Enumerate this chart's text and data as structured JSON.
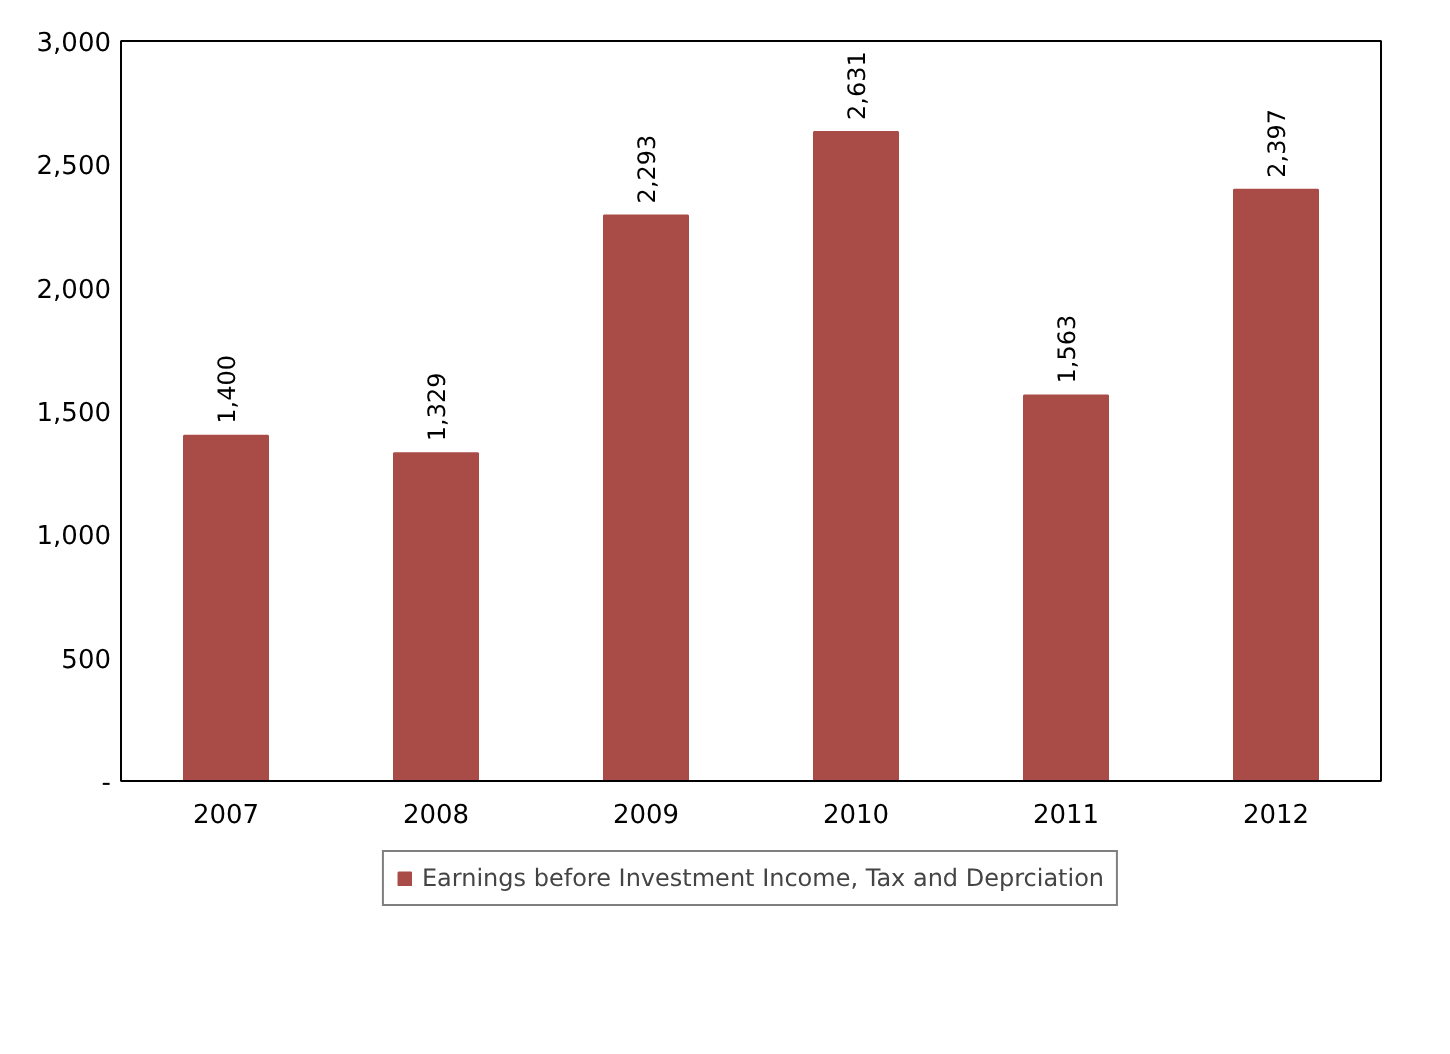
{
  "chart_data": {
    "type": "bar",
    "categories": [
      "2007",
      "2008",
      "2009",
      "2010",
      "2011",
      "2012"
    ],
    "series": [
      {
        "name": "Earnings before Investment Income, Tax and Deprciation",
        "color": "#a94b47",
        "values": [
          1400,
          1329,
          2293,
          2631,
          1563,
          2397
        ],
        "value_labels": [
          "1,400",
          "1,329",
          "2,293",
          "2,631",
          "1,563",
          "2,397"
        ]
      }
    ],
    "ylim": [
      0,
      3000
    ],
    "yticks": [
      {
        "value": 0,
        "label": "-"
      },
      500,
      {
        "value": 1000,
        "label": "1,000"
      },
      {
        "value": 1500,
        "label": "1,500"
      },
      {
        "value": 2000,
        "label": "2,000"
      },
      {
        "value": 2500,
        "label": "2,500"
      },
      {
        "value": 3000,
        "label": "3,000"
      }
    ],
    "grid": false,
    "legend": "bottom"
  }
}
